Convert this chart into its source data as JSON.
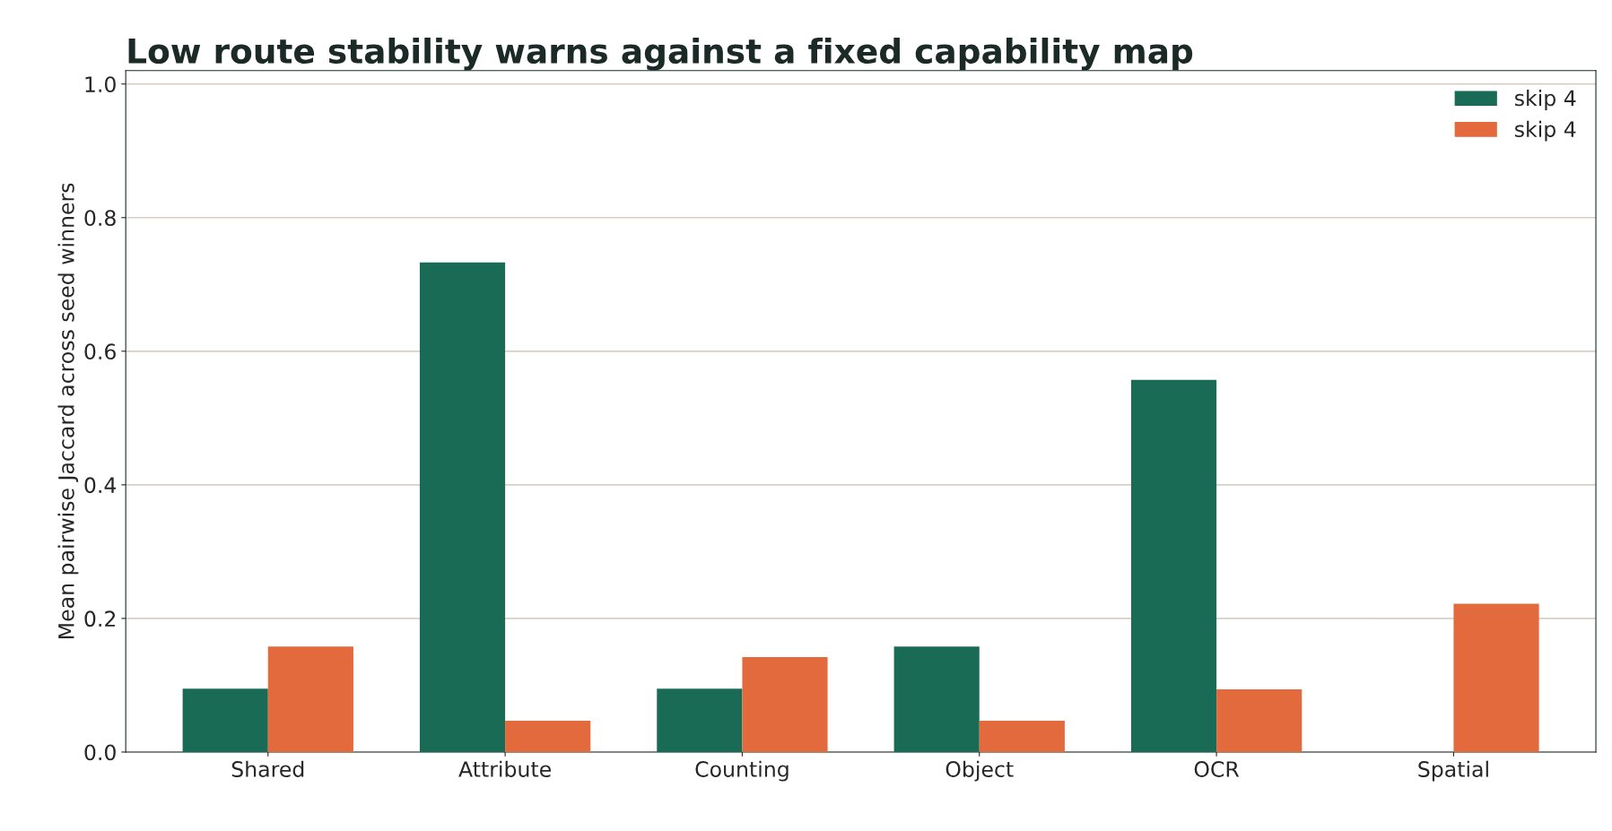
{
  "chart_data": {
    "type": "bar",
    "title": "Low route stability warns against a fixed capability map",
    "ylabel": "Mean pairwise Jaccard across seed winners",
    "categories": [
      "Shared",
      "Attribute",
      "Counting",
      "Object",
      "OCR",
      "Spatial"
    ],
    "series": [
      {
        "name": "skip 4",
        "color": "#1a6b55",
        "values": [
          0.095,
          0.733,
          0.095,
          0.158,
          0.557,
          null
        ]
      },
      {
        "name": "skip 4",
        "color": "#e36a3c",
        "values": [
          0.158,
          0.047,
          0.142,
          0.047,
          0.094,
          0.222
        ]
      }
    ],
    "ylim": [
      0,
      1.02
    ],
    "yticks": [
      {
        "value": 0,
        "label": "0.0"
      },
      0.2,
      0.4,
      0.6,
      0.8,
      {
        "value": 1,
        "label": "1.0"
      }
    ],
    "grid": "y",
    "legend": "top right"
  }
}
